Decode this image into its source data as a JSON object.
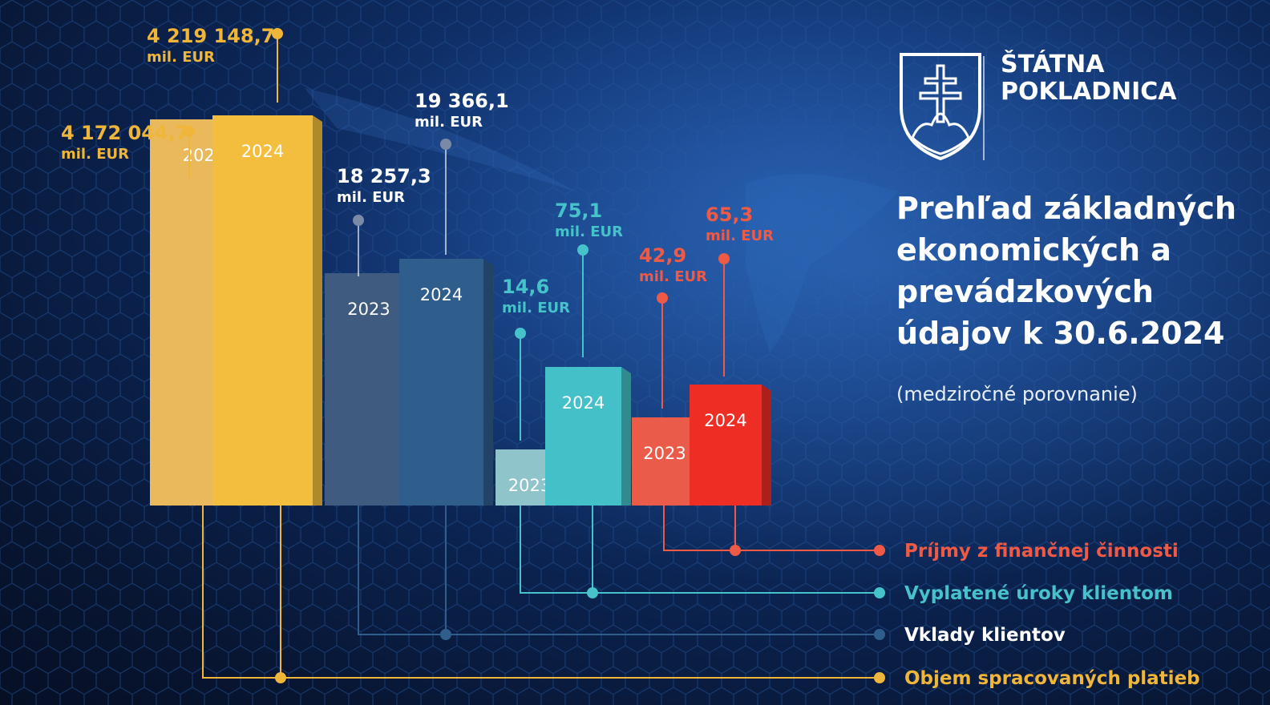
{
  "header": {
    "org_line1": "ŠTÁTNA",
    "org_line2": "POKLADNICA",
    "title": "Prehľad základných ekonomických a prevádzkových údajov k 30.6.2024",
    "subtitle": "(medziročné porovnanie)"
  },
  "colors": {
    "payments_2023": "#e9b95c",
    "payments_2024": "#f3be3d",
    "deposits_2023": "#3f5b7f",
    "deposits_2024": "#2f5d8c",
    "interest_2023": "#8fc4cb",
    "interest_2024": "#44c0c8",
    "income_2023": "#ea5c49",
    "income_2024": "#ee2d25",
    "label_payments": "#f0b63a",
    "label_deposits": "#ffffff",
    "label_interest": "#46c2ca",
    "label_income": "#ee5a45"
  },
  "chart_data": {
    "type": "bar",
    "categories": [
      "2023",
      "2024"
    ],
    "unit": "mil. EUR",
    "series": [
      {
        "name": "Objem spracovaných platieb",
        "values": [
          4172044.7,
          4219148.7
        ],
        "labels": [
          "4 172 044,7",
          "4 219 148,7"
        ]
      },
      {
        "name": "Vklady klientov",
        "values": [
          18257.3,
          19366.1
        ],
        "labels": [
          "18 257,3",
          "19 366,1"
        ]
      },
      {
        "name": "Vyplatené úroky klientom",
        "values": [
          14.6,
          75.1
        ],
        "labels": [
          "14,6",
          "75,1"
        ]
      },
      {
        "name": "Príjmy z finančnej činnosti",
        "values": [
          42.9,
          65.3
        ],
        "labels": [
          "42,9",
          "65,3"
        ]
      }
    ]
  }
}
